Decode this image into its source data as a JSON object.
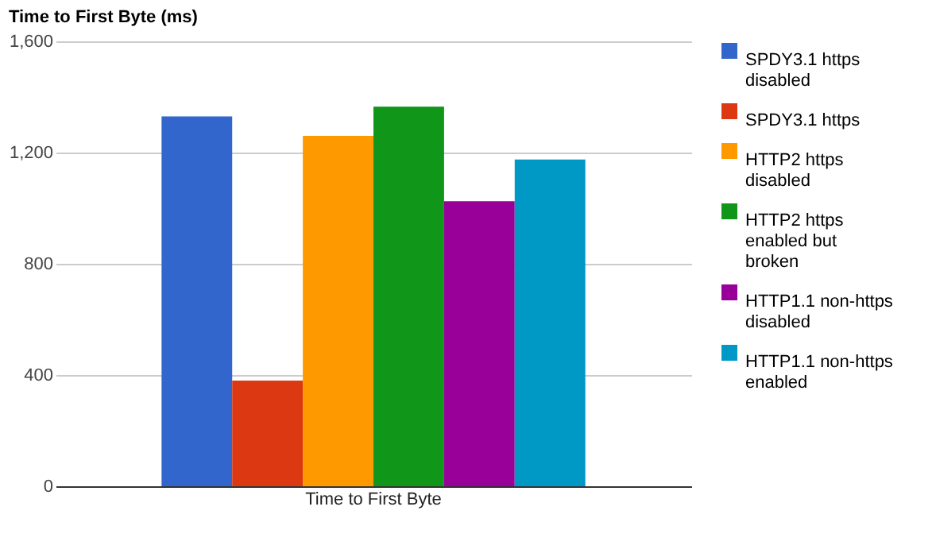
{
  "chart_data": {
    "type": "bar",
    "title": "Time to First Byte (ms)",
    "categories": [
      "Time to First Byte"
    ],
    "series": [
      {
        "name": "SPDY3.1 https disabled",
        "color": "#3366cc",
        "values": [
          1330
        ]
      },
      {
        "name": "SPDY3.1 https",
        "color": "#dc3912",
        "values": [
          380
        ]
      },
      {
        "name": "HTTP2 https disabled",
        "color": "#ff9900",
        "values": [
          1260
        ]
      },
      {
        "name": "HTTP2 https enabled but broken",
        "color": "#109618",
        "values": [
          1365
        ]
      },
      {
        "name": "HTTP1.1 non-https disabled",
        "color": "#990099",
        "values": [
          1025
        ]
      },
      {
        "name": "HTTP1.1 non-https enabled",
        "color": "#0099c6",
        "values": [
          1175
        ]
      }
    ],
    "ylim": [
      0,
      1600
    ],
    "yticks": [
      0,
      {
        "value": 400,
        "label": "400"
      },
      {
        "value": 800,
        "label": "800"
      },
      {
        "value": 1200,
        "label": "1,200"
      },
      {
        "value": 1600,
        "label": "1,600"
      }
    ],
    "grid": "y",
    "legend": "right"
  }
}
